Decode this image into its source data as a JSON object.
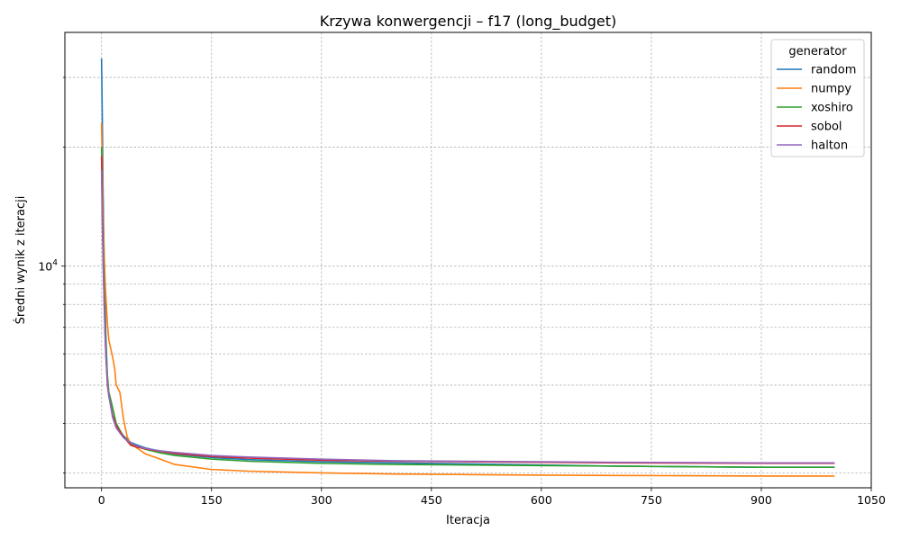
{
  "chart_data": {
    "type": "line",
    "title": "Krzywa konwergencji – f17 (long_budget)",
    "xlabel": "Iteracja",
    "ylabel": "Średni wynik z iteracji",
    "x_ticks": [
      "0",
      "150",
      "300",
      "450",
      "600",
      "750",
      "900",
      "1050"
    ],
    "x_tick_values": [
      0,
      150,
      300,
      450,
      600,
      750,
      900,
      1050
    ],
    "y_scale": "log",
    "y_major_tick_label": "10^4",
    "xlim": [
      -50,
      1050
    ],
    "ylim": [
      2750,
      39000
    ],
    "grid": true,
    "legend": {
      "title": "generator",
      "position": "top-right"
    },
    "series": [
      {
        "name": "random",
        "color": "#1f77b4",
        "x": [
          0,
          1,
          2,
          3,
          4,
          5,
          6,
          8,
          10,
          15,
          20,
          30,
          40,
          50,
          60,
          80,
          100,
          150,
          200,
          300,
          400,
          500,
          600,
          700,
          800,
          900,
          1000
        ],
        "y": [
          33500,
          24000,
          16000,
          12000,
          9500,
          7800,
          6600,
          5200,
          4700,
          4200,
          3950,
          3720,
          3580,
          3520,
          3470,
          3400,
          3350,
          3280,
          3240,
          3200,
          3180,
          3160,
          3140,
          3120,
          3110,
          3100,
          3100
        ]
      },
      {
        "name": "numpy",
        "color": "#ff7f0e",
        "x": [
          0,
          1,
          2,
          3,
          5,
          8,
          10,
          15,
          18,
          20,
          25,
          30,
          35,
          40,
          50,
          60,
          80,
          100,
          150,
          200,
          300,
          400,
          500,
          600,
          700,
          800,
          900,
          1000
        ],
        "y": [
          23000,
          18000,
          14000,
          11500,
          9000,
          7200,
          6500,
          5900,
          5500,
          5000,
          4800,
          4100,
          3700,
          3550,
          3450,
          3350,
          3250,
          3150,
          3060,
          3030,
          3000,
          2980,
          2970,
          2960,
          2955,
          2950,
          2945,
          2945
        ]
      },
      {
        "name": "xoshiro",
        "color": "#2ca02c",
        "x": [
          0,
          1,
          2,
          3,
          4,
          5,
          6,
          8,
          10,
          15,
          20,
          30,
          40,
          50,
          60,
          80,
          100,
          150,
          200,
          300,
          400,
          500,
          600,
          700,
          800,
          900,
          1000
        ],
        "y": [
          20000,
          15000,
          12000,
          10000,
          8500,
          7300,
          6300,
          5300,
          4800,
          4400,
          4000,
          3700,
          3560,
          3490,
          3440,
          3370,
          3320,
          3250,
          3210,
          3170,
          3150,
          3140,
          3130,
          3120,
          3110,
          3100,
          3100
        ]
      },
      {
        "name": "sobol",
        "color": "#d62728",
        "x": [
          0,
          1,
          2,
          3,
          4,
          5,
          6,
          8,
          10,
          15,
          20,
          30,
          40,
          50,
          60,
          80,
          100,
          150,
          200,
          300,
          400,
          500,
          600,
          700,
          800,
          900,
          1000
        ],
        "y": [
          19000,
          14000,
          11000,
          9000,
          7700,
          6600,
          5900,
          5000,
          4700,
          4200,
          3950,
          3700,
          3520,
          3480,
          3450,
          3400,
          3360,
          3300,
          3270,
          3230,
          3210,
          3200,
          3190,
          3180,
          3175,
          3170,
          3170
        ]
      },
      {
        "name": "halton",
        "color": "#9467bd",
        "x": [
          0,
          1,
          2,
          3,
          4,
          5,
          6,
          8,
          10,
          15,
          20,
          30,
          40,
          50,
          60,
          80,
          100,
          150,
          200,
          300,
          400,
          500,
          600,
          700,
          800,
          900,
          1000
        ],
        "y": [
          17500,
          13000,
          10500,
          8800,
          7500,
          6600,
          5900,
          5100,
          4700,
          4150,
          3900,
          3680,
          3570,
          3500,
          3460,
          3410,
          3380,
          3320,
          3290,
          3250,
          3220,
          3210,
          3200,
          3190,
          3185,
          3180,
          3180
        ]
      }
    ]
  }
}
